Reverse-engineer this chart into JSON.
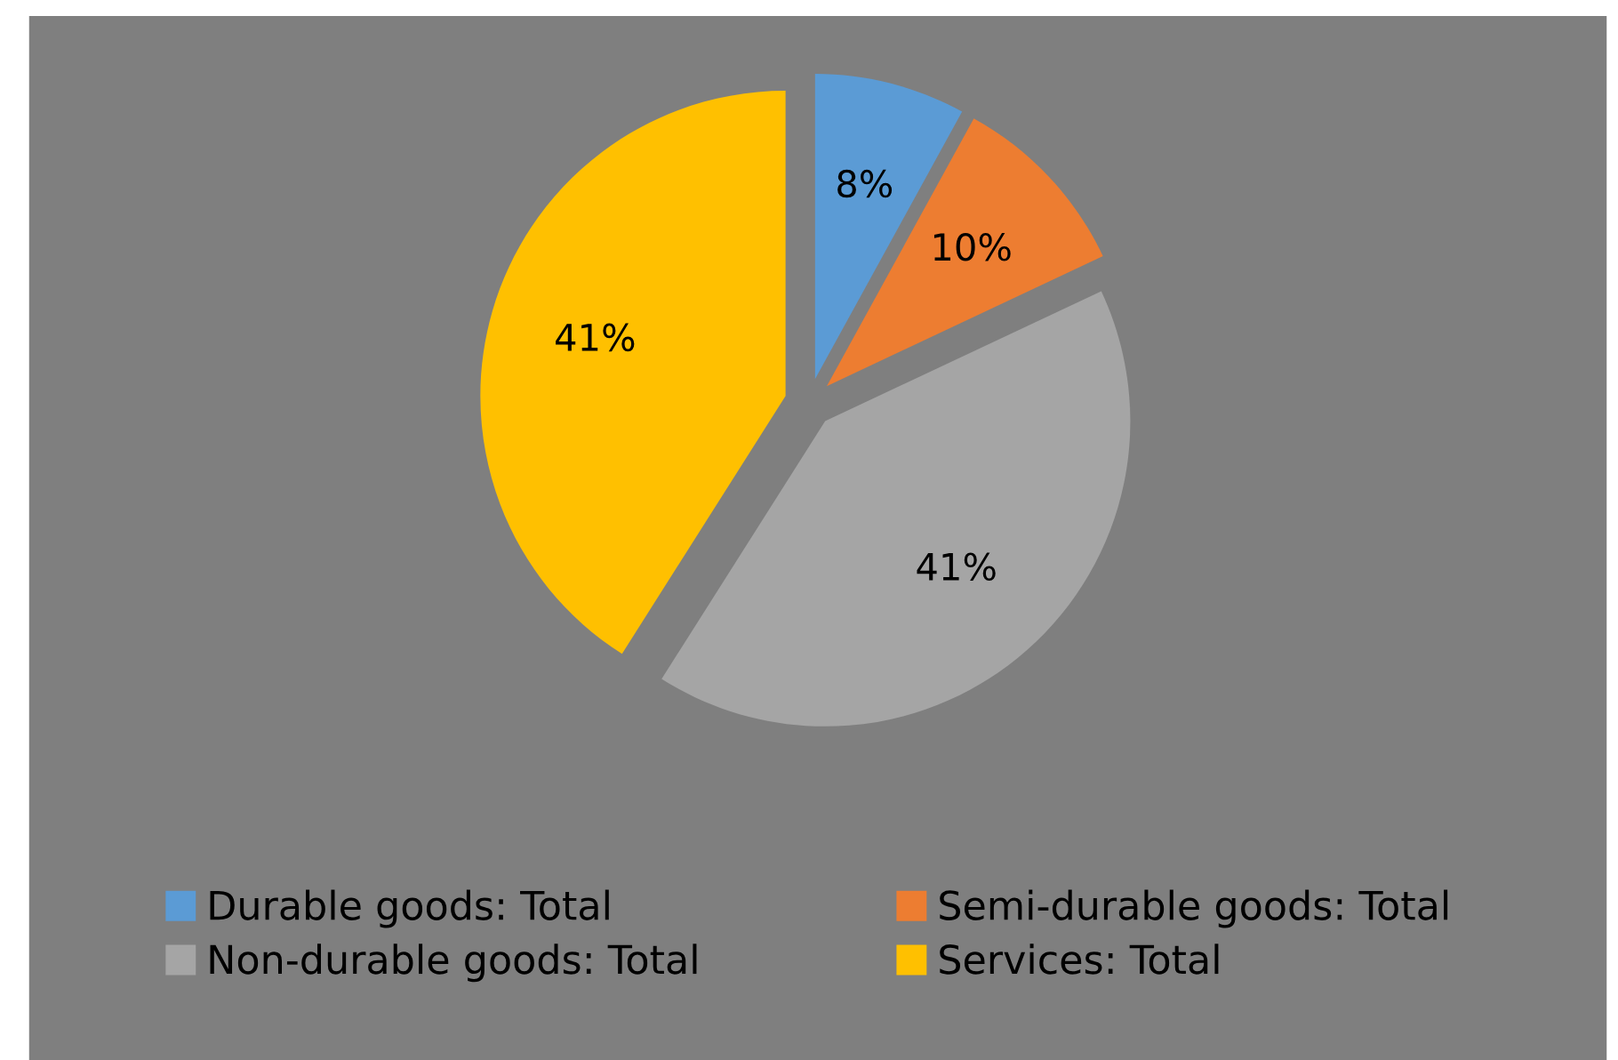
{
  "chart_data": {
    "type": "pie",
    "categories": [
      "Durable goods: Total",
      "Semi-durable goods: Total",
      "Non-durable goods: Total",
      "Services: Total"
    ],
    "values": [
      8,
      10,
      41,
      41
    ],
    "colors": [
      "#5b9bd5",
      "#ed7d31",
      "#a5a5a5",
      "#ffc000"
    ],
    "value_labels": [
      "8%",
      "10%",
      "41%",
      "41%"
    ],
    "legend": "bottom"
  }
}
